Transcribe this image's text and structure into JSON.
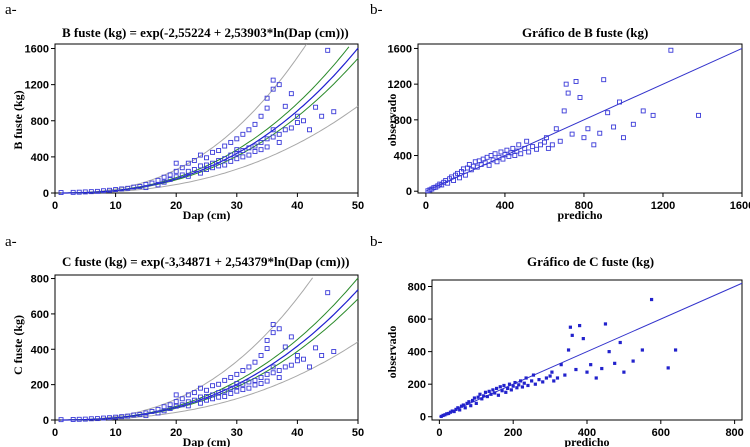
{
  "panels": [
    {
      "letter": "a-",
      "title": "B fuste (kg) = exp(-2,55224 + 2,53903*ln(Dap (cm)))"
    },
    {
      "letter": "b-",
      "title": "Gráfico de B fuste (kg)"
    },
    {
      "letter": "a-",
      "title": "C fuste (kg) = exp(-3,34871 + 2,54379*ln(Dap (cm)))"
    },
    {
      "letter": "b-",
      "title": "Gráfico de C fuste (kg)"
    }
  ],
  "chart_data": [
    {
      "type": "scatter",
      "title": "B fuste (kg) = exp(-2,55224 + 2,53903*ln(Dap (cm)))",
      "xlabel": "Dap (cm)",
      "ylabel": "B fuste (kg)",
      "xlim": [
        0,
        50
      ],
      "ylim": [
        0,
        1650
      ],
      "xticks": [
        "0",
        "10",
        "20",
        "30",
        "40",
        "50"
      ],
      "yticks": [
        "0",
        "400",
        "800",
        "1200",
        "1600"
      ],
      "marker_color": "#3a3ad8",
      "model": {
        "a": -2.55224,
        "b": 2.53903,
        "line_color": "#1f1fd0",
        "ci_color": "#2a8a2a",
        "pi_color": "#a8a8a8"
      },
      "points": [
        [
          1,
          5
        ],
        [
          3,
          7
        ],
        [
          4,
          9
        ],
        [
          5,
          12
        ],
        [
          6,
          15
        ],
        [
          7,
          18
        ],
        [
          8,
          25
        ],
        [
          9,
          30
        ],
        [
          10,
          38
        ],
        [
          11,
          45
        ],
        [
          12,
          52
        ],
        [
          13,
          65
        ],
        [
          14,
          72
        ],
        [
          15,
          95
        ],
        [
          15,
          60
        ],
        [
          16,
          110
        ],
        [
          17,
          90
        ],
        [
          17,
          140
        ],
        [
          18,
          120
        ],
        [
          18,
          175
        ],
        [
          19,
          150
        ],
        [
          19,
          200
        ],
        [
          20,
          180
        ],
        [
          20,
          240
        ],
        [
          20,
          330
        ],
        [
          21,
          200
        ],
        [
          21,
          280
        ],
        [
          22,
          240
        ],
        [
          22,
          330
        ],
        [
          22,
          185
        ],
        [
          23,
          260
        ],
        [
          23,
          360
        ],
        [
          24,
          300
        ],
        [
          24,
          220
        ],
        [
          24,
          420
        ],
        [
          25,
          310
        ],
        [
          25,
          390
        ],
        [
          25,
          260
        ],
        [
          26,
          330
        ],
        [
          26,
          450
        ],
        [
          26,
          280
        ],
        [
          27,
          360
        ],
        [
          27,
          300
        ],
        [
          27,
          470
        ],
        [
          28,
          380
        ],
        [
          28,
          520
        ],
        [
          28,
          310
        ],
        [
          29,
          420
        ],
        [
          29,
          350
        ],
        [
          29,
          560
        ],
        [
          30,
          440
        ],
        [
          30,
          380
        ],
        [
          30,
          600
        ],
        [
          30,
          480
        ],
        [
          31,
          470
        ],
        [
          31,
          400
        ],
        [
          31,
          650
        ],
        [
          32,
          500
        ],
        [
          32,
          420
        ],
        [
          32,
          700
        ],
        [
          33,
          520
        ],
        [
          33,
          460
        ],
        [
          33,
          760
        ],
        [
          34,
          560
        ],
        [
          34,
          480
        ],
        [
          34,
          850
        ],
        [
          35,
          600
        ],
        [
          35,
          510
        ],
        [
          35,
          940
        ],
        [
          35,
          1050
        ],
        [
          36,
          620
        ],
        [
          36,
          700
        ],
        [
          36,
          1150
        ],
        [
          36,
          1250
        ],
        [
          37,
          650
        ],
        [
          37,
          1200
        ],
        [
          37,
          560
        ],
        [
          38,
          700
        ],
        [
          38,
          960
        ],
        [
          39,
          720
        ],
        [
          39,
          1100
        ],
        [
          40,
          780
        ],
        [
          40,
          850
        ],
        [
          41,
          800
        ],
        [
          42,
          700
        ],
        [
          43,
          950
        ],
        [
          44,
          850
        ],
        [
          45,
          1580
        ],
        [
          46,
          900
        ]
      ]
    },
    {
      "type": "scatter",
      "title": "Gráfico de B fuste (kg)",
      "xlabel": "predicho",
      "ylabel": "observado",
      "xlim": [
        -40,
        1600
      ],
      "ylim": [
        -20,
        1650
      ],
      "xticks": [
        "0",
        "400",
        "800",
        "1200",
        "1600"
      ],
      "yticks": [
        "0",
        "400",
        "800",
        "1200",
        "1600"
      ],
      "marker_color": "#3a3ad8",
      "line_color": "#3333cc",
      "points": [
        [
          10,
          5
        ],
        [
          20,
          15
        ],
        [
          30,
          25
        ],
        [
          40,
          40
        ],
        [
          50,
          45
        ],
        [
          60,
          60
        ],
        [
          70,
          80
        ],
        [
          80,
          70
        ],
        [
          90,
          100
        ],
        [
          100,
          120
        ],
        [
          110,
          90
        ],
        [
          120,
          140
        ],
        [
          130,
          160
        ],
        [
          140,
          120
        ],
        [
          150,
          180
        ],
        [
          160,
          200
        ],
        [
          170,
          150
        ],
        [
          180,
          220
        ],
        [
          190,
          250
        ],
        [
          200,
          180
        ],
        [
          210,
          260
        ],
        [
          220,
          300
        ],
        [
          230,
          240
        ],
        [
          240,
          280
        ],
        [
          250,
          330
        ],
        [
          260,
          270
        ],
        [
          270,
          340
        ],
        [
          280,
          300
        ],
        [
          290,
          360
        ],
        [
          300,
          320
        ],
        [
          310,
          380
        ],
        [
          320,
          290
        ],
        [
          330,
          400
        ],
        [
          340,
          350
        ],
        [
          350,
          420
        ],
        [
          360,
          330
        ],
        [
          370,
          380
        ],
        [
          380,
          440
        ],
        [
          390,
          360
        ],
        [
          400,
          410
        ],
        [
          410,
          460
        ],
        [
          420,
          390
        ],
        [
          430,
          430
        ],
        [
          440,
          480
        ],
        [
          450,
          400
        ],
        [
          460,
          450
        ],
        [
          470,
          520
        ],
        [
          480,
          420
        ],
        [
          500,
          480
        ],
        [
          510,
          560
        ],
        [
          520,
          440
        ],
        [
          540,
          500
        ],
        [
          560,
          470
        ],
        [
          580,
          520
        ],
        [
          600,
          550
        ],
        [
          610,
          600
        ],
        [
          620,
          480
        ],
        [
          640,
          520
        ],
        [
          660,
          700
        ],
        [
          680,
          560
        ],
        [
          700,
          900
        ],
        [
          710,
          1200
        ],
        [
          720,
          1100
        ],
        [
          740,
          640
        ],
        [
          760,
          1230
        ],
        [
          780,
          1050
        ],
        [
          800,
          600
        ],
        [
          820,
          700
        ],
        [
          850,
          520
        ],
        [
          880,
          650
        ],
        [
          900,
          1250
        ],
        [
          920,
          880
        ],
        [
          950,
          720
        ],
        [
          980,
          1000
        ],
        [
          1000,
          600
        ],
        [
          1050,
          750
        ],
        [
          1100,
          900
        ],
        [
          1150,
          850
        ],
        [
          1240,
          1580
        ],
        [
          1380,
          850
        ]
      ]
    },
    {
      "type": "scatter",
      "title": "C fuste (kg) = exp(-3,34871 + 2,54379*ln(Dap (cm)))",
      "xlabel": "Dap (cm)",
      "ylabel": "C fuste (kg)",
      "xlim": [
        0,
        50
      ],
      "ylim": [
        0,
        820
      ],
      "xticks": [
        "0",
        "10",
        "20",
        "30",
        "40",
        "50"
      ],
      "yticks": [
        "0",
        "200",
        "400",
        "600",
        "800"
      ],
      "marker_color": "#3a3ad8",
      "model": {
        "a": -3.34871,
        "b": 2.54379,
        "line_color": "#1f1fd0",
        "ci_color": "#2a8a2a",
        "pi_color": "#a8a8a8"
      },
      "points": [
        [
          1,
          2
        ],
        [
          3,
          3
        ],
        [
          4,
          4
        ],
        [
          5,
          5
        ],
        [
          6,
          7
        ],
        [
          7,
          8
        ],
        [
          8,
          11
        ],
        [
          9,
          13
        ],
        [
          10,
          16
        ],
        [
          11,
          19
        ],
        [
          12,
          22
        ],
        [
          13,
          28
        ],
        [
          14,
          31
        ],
        [
          15,
          40
        ],
        [
          15,
          25
        ],
        [
          16,
          48
        ],
        [
          17,
          40
        ],
        [
          17,
          60
        ],
        [
          18,
          52
        ],
        [
          18,
          75
        ],
        [
          19,
          65
        ],
        [
          19,
          86
        ],
        [
          20,
          78
        ],
        [
          20,
          104
        ],
        [
          20,
          142
        ],
        [
          21,
          86
        ],
        [
          21,
          120
        ],
        [
          22,
          103
        ],
        [
          22,
          142
        ],
        [
          22,
          80
        ],
        [
          23,
          112
        ],
        [
          23,
          155
        ],
        [
          24,
          130
        ],
        [
          24,
          95
        ],
        [
          24,
          180
        ],
        [
          25,
          133
        ],
        [
          25,
          168
        ],
        [
          25,
          112
        ],
        [
          26,
          142
        ],
        [
          26,
          194
        ],
        [
          26,
          120
        ],
        [
          27,
          155
        ],
        [
          27,
          129
        ],
        [
          27,
          202
        ],
        [
          28,
          163
        ],
        [
          28,
          224
        ],
        [
          28,
          133
        ],
        [
          29,
          180
        ],
        [
          29,
          150
        ],
        [
          29,
          240
        ],
        [
          30,
          190
        ],
        [
          30,
          163
        ],
        [
          30,
          258
        ],
        [
          30,
          206
        ],
        [
          31,
          202
        ],
        [
          31,
          172
        ],
        [
          31,
          280
        ],
        [
          32,
          215
        ],
        [
          32,
          180
        ],
        [
          32,
          300
        ],
        [
          33,
          224
        ],
        [
          33,
          198
        ],
        [
          33,
          327
        ],
        [
          34,
          240
        ],
        [
          34,
          206
        ],
        [
          34,
          365
        ],
        [
          35,
          258
        ],
        [
          35,
          220
        ],
        [
          35,
          404
        ],
        [
          35,
          450
        ],
        [
          36,
          267
        ],
        [
          36,
          300
        ],
        [
          36,
          494
        ],
        [
          36,
          540
        ],
        [
          37,
          280
        ],
        [
          37,
          516
        ],
        [
          37,
          240
        ],
        [
          38,
          300
        ],
        [
          38,
          413
        ],
        [
          39,
          310
        ],
        [
          39,
          470
        ],
        [
          40,
          335
        ],
        [
          40,
          365
        ],
        [
          41,
          344
        ],
        [
          42,
          300
        ],
        [
          43,
          408
        ],
        [
          44,
          365
        ],
        [
          45,
          720
        ],
        [
          46,
          387
        ]
      ]
    },
    {
      "type": "scatter",
      "title": "Gráfico de C fuste (kg)",
      "xlabel": "predicho",
      "ylabel": "observado",
      "xlim": [
        -20,
        820
      ],
      "ylim": [
        -20,
        840
      ],
      "xticks": [
        "0",
        "200",
        "400",
        "600",
        "800"
      ],
      "yticks": [
        "0",
        "200",
        "400",
        "600",
        "800"
      ],
      "marker_color": "#2222cc",
      "line_color": "#3333cc",
      "points": [
        [
          5,
          2
        ],
        [
          10,
          8
        ],
        [
          15,
          12
        ],
        [
          20,
          18
        ],
        [
          25,
          20
        ],
        [
          30,
          28
        ],
        [
          35,
          35
        ],
        [
          40,
          32
        ],
        [
          45,
          45
        ],
        [
          50,
          55
        ],
        [
          55,
          42
        ],
        [
          60,
          65
        ],
        [
          65,
          72
        ],
        [
          70,
          55
        ],
        [
          75,
          82
        ],
        [
          80,
          92
        ],
        [
          85,
          68
        ],
        [
          90,
          100
        ],
        [
          95,
          115
        ],
        [
          100,
          82
        ],
        [
          105,
          120
        ],
        [
          110,
          138
        ],
        [
          115,
          110
        ],
        [
          120,
          128
        ],
        [
          125,
          150
        ],
        [
          130,
          124
        ],
        [
          135,
          156
        ],
        [
          140,
          138
        ],
        [
          145,
          165
        ],
        [
          150,
          146
        ],
        [
          155,
          174
        ],
        [
          160,
          132
        ],
        [
          165,
          184
        ],
        [
          170,
          160
        ],
        [
          175,
          192
        ],
        [
          180,
          150
        ],
        [
          185,
          174
        ],
        [
          190,
          200
        ],
        [
          195,
          165
        ],
        [
          200,
          188
        ],
        [
          205,
          210
        ],
        [
          210,
          178
        ],
        [
          215,
          196
        ],
        [
          220,
          220
        ],
        [
          225,
          183
        ],
        [
          230,
          206
        ],
        [
          235,
          238
        ],
        [
          240,
          192
        ],
        [
          250,
          220
        ],
        [
          255,
          256
        ],
        [
          260,
          200
        ],
        [
          270,
          228
        ],
        [
          280,
          214
        ],
        [
          290,
          238
        ],
        [
          300,
          250
        ],
        [
          305,
          274
        ],
        [
          310,
          220
        ],
        [
          320,
          238
        ],
        [
          330,
          320
        ],
        [
          340,
          256
        ],
        [
          350,
          410
        ],
        [
          355,
          550
        ],
        [
          360,
          500
        ],
        [
          370,
          290
        ],
        [
          380,
          560
        ],
        [
          390,
          480
        ],
        [
          400,
          274
        ],
        [
          410,
          320
        ],
        [
          425,
          238
        ],
        [
          440,
          296
        ],
        [
          450,
          570
        ],
        [
          460,
          400
        ],
        [
          475,
          328
        ],
        [
          490,
          456
        ],
        [
          500,
          274
        ],
        [
          525,
          342
        ],
        [
          550,
          410
        ],
        [
          575,
          720
        ],
        [
          620,
          300
        ],
        [
          640,
          410
        ]
      ]
    }
  ]
}
